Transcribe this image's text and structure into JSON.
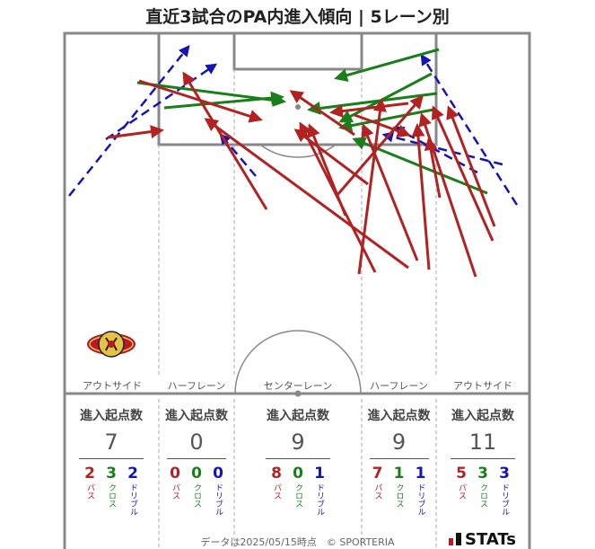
{
  "title": "直近3試合のPA内進入傾向 | 5レーン別",
  "lanes": [
    {
      "label": "アウトサイド",
      "head": "進入起点数",
      "total": "7",
      "pass": "2",
      "cross": "3",
      "dribble": "2"
    },
    {
      "label": "ハーフレーン",
      "head": "進入起点数",
      "total": "0",
      "pass": "0",
      "cross": "0",
      "dribble": "0"
    },
    {
      "label": "センターレーン",
      "head": "進入起点数",
      "total": "9",
      "pass": "8",
      "cross": "0",
      "dribble": "1"
    },
    {
      "label": "ハーフレーン",
      "head": "進入起点数",
      "total": "9",
      "pass": "7",
      "cross": "1",
      "dribble": "1"
    },
    {
      "label": "アウトサイド",
      "head": "進入起点数",
      "total": "11",
      "pass": "5",
      "cross": "3",
      "dribble": "3"
    }
  ],
  "categories": {
    "pass": "パス",
    "cross": "クロス",
    "dribble": "ドリブル"
  },
  "colors": {
    "pass": "#b22222",
    "cross": "#1a7f1a",
    "dribble": "#1515b5",
    "pitch_line": "#888888"
  },
  "footer": "データは2025/05/15時点　© SPORTERIA",
  "brand": "STATs",
  "crest_icon": "kashima-antlers-crest-icon"
}
